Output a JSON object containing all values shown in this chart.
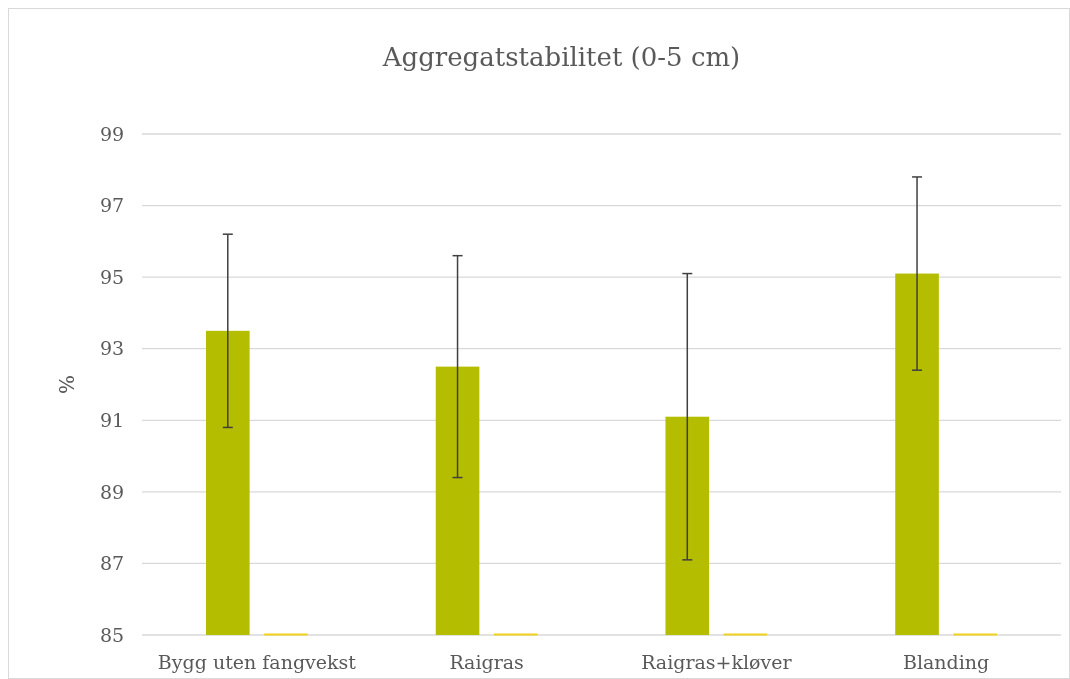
{
  "chart_data": {
    "type": "bar",
    "title": "Aggregatstabilitet (0-5 cm)",
    "ylabel": "%",
    "categories": [
      "Bygg uten fangvekst",
      "Raigras",
      "Raigras+kløver",
      "Blanding"
    ],
    "series": [
      {
        "color": "#b5bd00",
        "values": [
          93.5,
          92.5,
          91.1,
          95.1
        ],
        "errors": [
          2.7,
          3.1,
          4.0,
          2.7
        ]
      },
      {
        "color": "#f2d21b",
        "values": [
          85,
          85,
          85,
          85
        ]
      }
    ],
    "ylim": [
      85,
      99
    ],
    "yticks": [
      85,
      87,
      89,
      91,
      93,
      95,
      97,
      99
    ],
    "grid": "y"
  }
}
